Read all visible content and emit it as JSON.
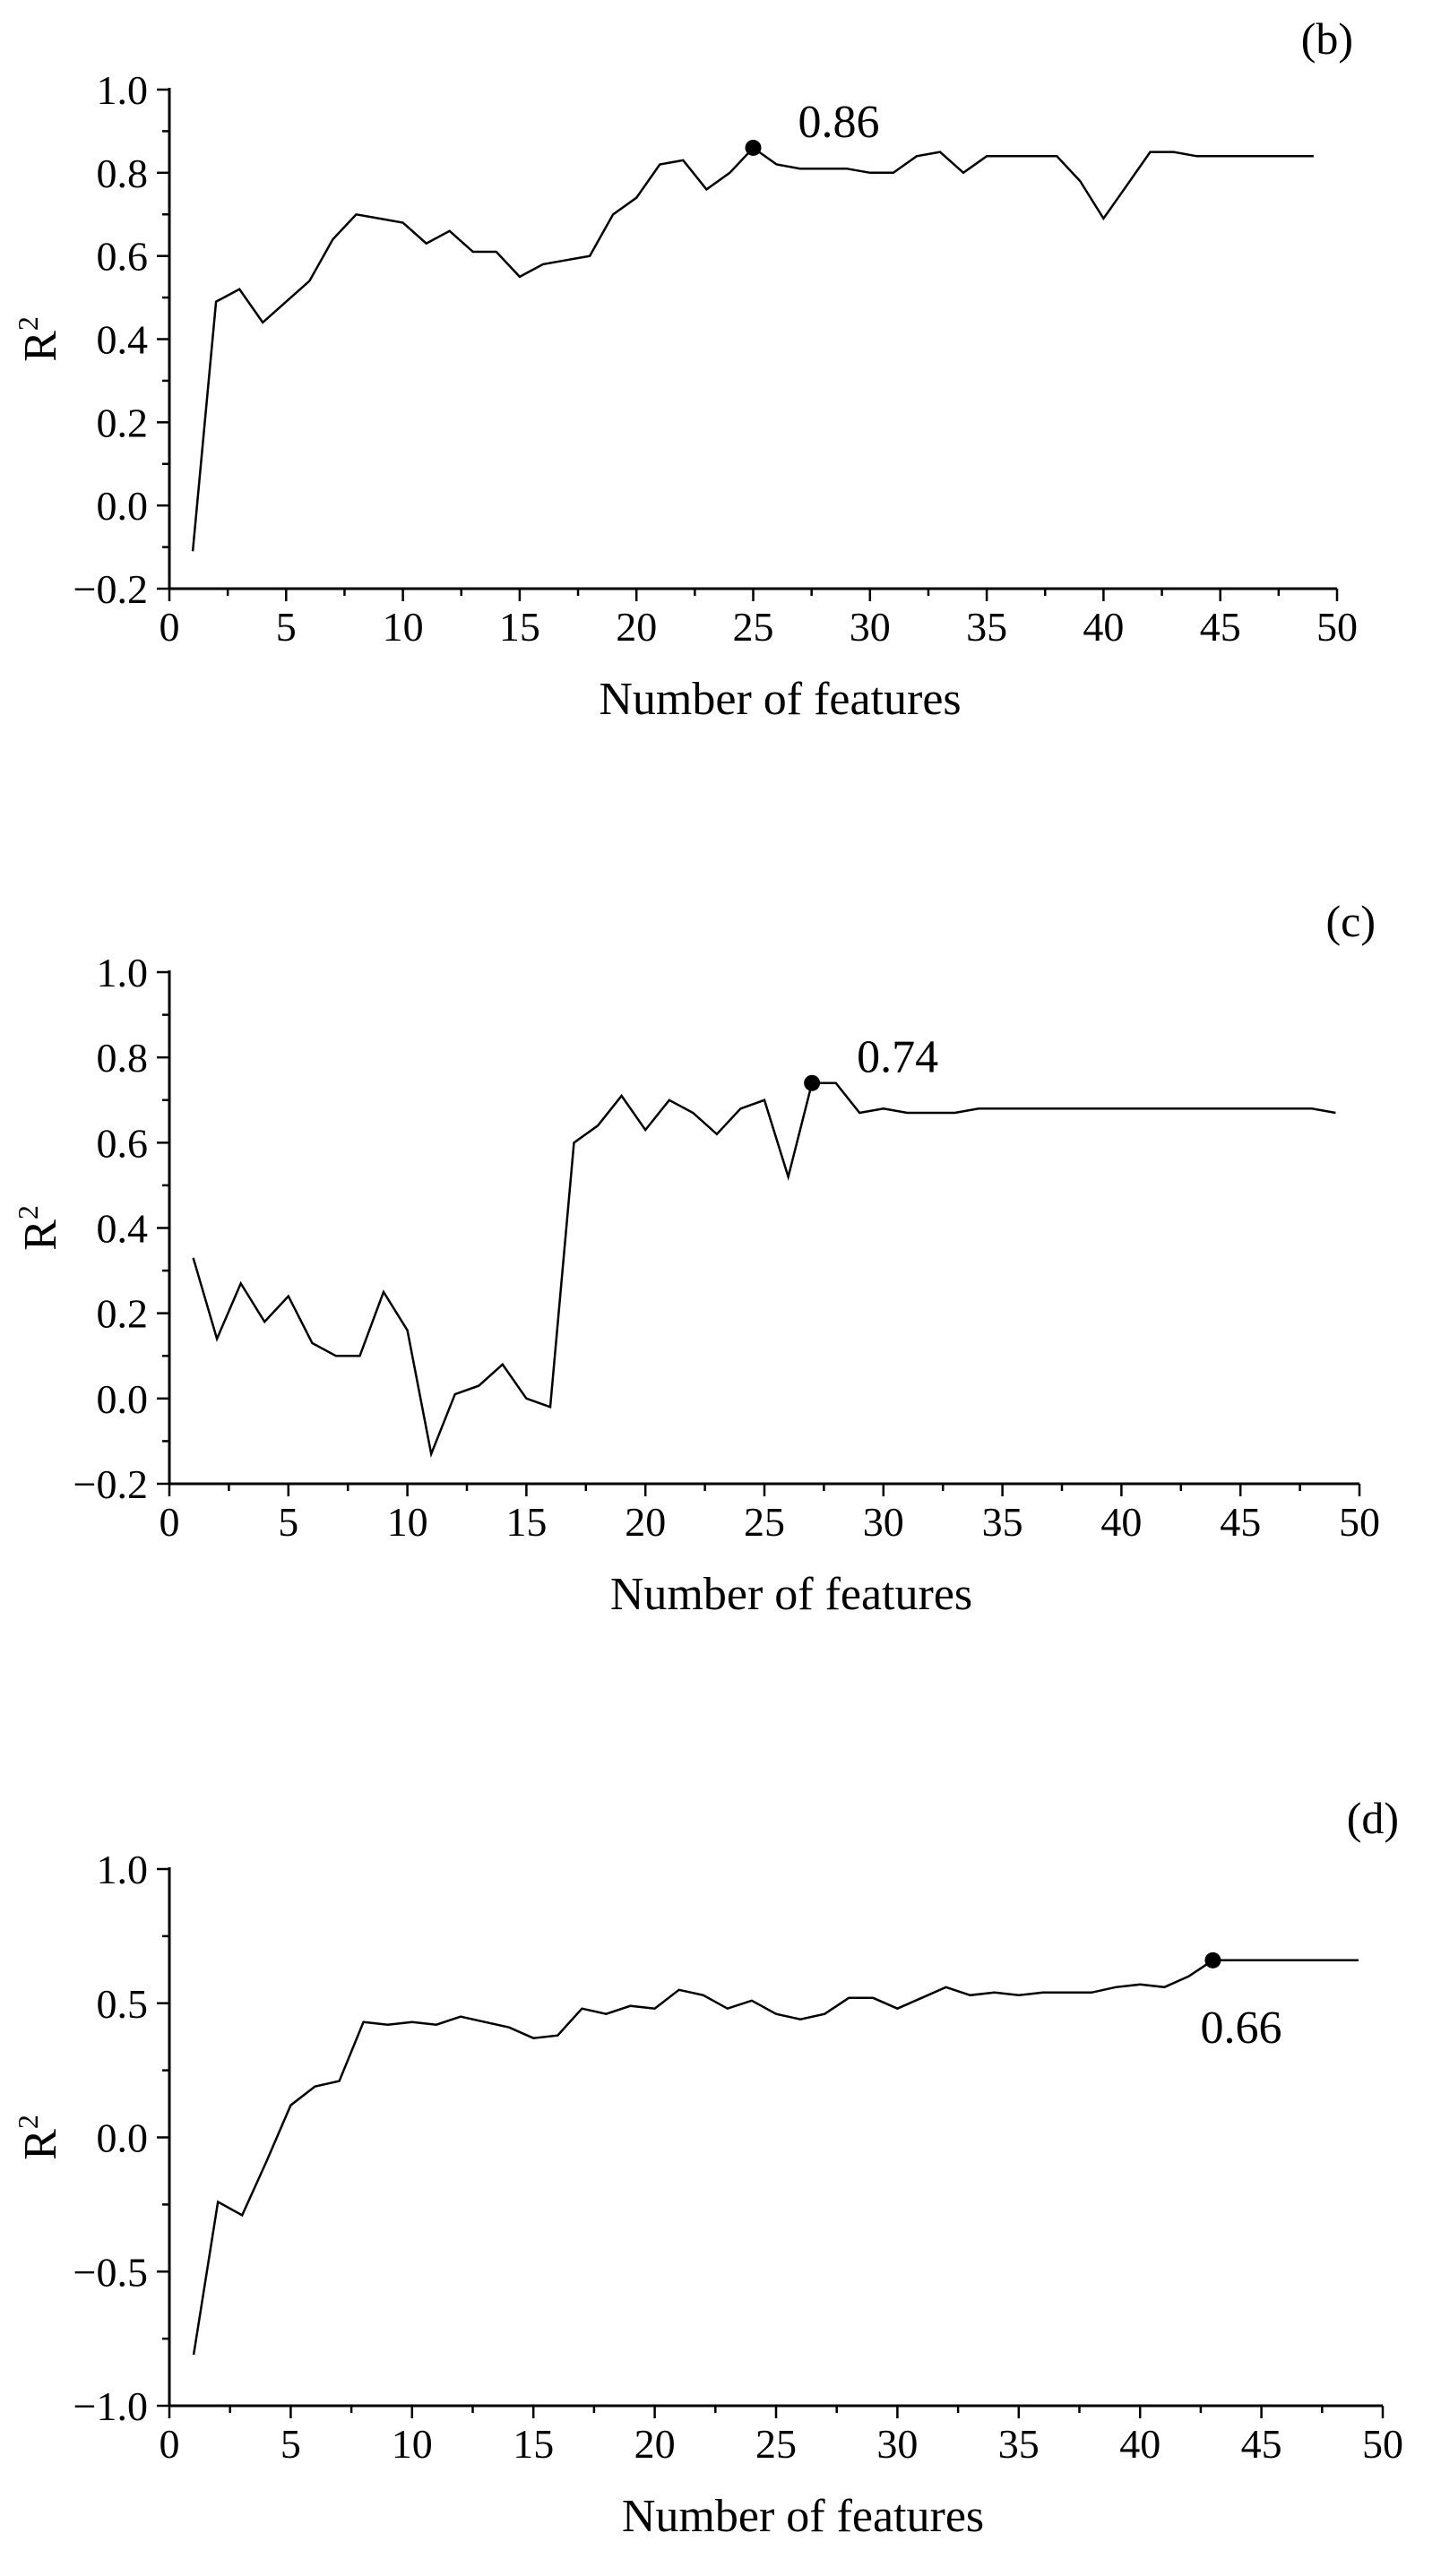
{
  "chart_data": [
    {
      "type": "line",
      "panel_label": "(b)",
      "xlabel": "Number of features",
      "ylabel": "R",
      "ylabel_superscript": "2",
      "xlim": [
        0,
        50
      ],
      "ylim": [
        -0.2,
        1.0
      ],
      "xticks": [
        0,
        5,
        10,
        15,
        20,
        25,
        30,
        35,
        40,
        45,
        50
      ],
      "yticks": [
        -0.2,
        0.0,
        0.2,
        0.4,
        0.6,
        0.8,
        1.0
      ],
      "ytick_labels": [
        "−0.2",
        "0.0",
        "0.2",
        "0.4",
        "0.6",
        "0.8",
        "1.0"
      ],
      "xtick_labels": [
        "0",
        "5",
        "10",
        "15",
        "20",
        "25",
        "30",
        "35",
        "40",
        "45",
        "50"
      ],
      "grid": false,
      "series": [
        {
          "x": [
            1,
            2,
            3,
            4,
            5,
            6,
            7,
            8,
            9,
            10,
            11,
            12,
            13,
            14,
            15,
            16,
            17,
            18,
            19,
            20,
            21,
            22,
            23,
            24,
            25,
            26,
            27,
            28,
            29,
            30,
            31,
            32,
            33,
            34,
            35,
            36,
            37,
            38,
            39,
            40,
            41,
            42,
            43,
            44,
            45,
            46,
            47,
            48,
            49
          ],
          "y": [
            -0.11,
            0.49,
            0.52,
            0.44,
            0.49,
            0.54,
            0.64,
            0.7,
            0.69,
            0.68,
            0.63,
            0.66,
            0.61,
            0.61,
            0.55,
            0.58,
            0.59,
            0.6,
            0.7,
            0.74,
            0.82,
            0.83,
            0.76,
            0.8,
            0.86,
            0.82,
            0.81,
            0.81,
            0.81,
            0.8,
            0.8,
            0.84,
            0.85,
            0.8,
            0.84,
            0.84,
            0.84,
            0.84,
            0.78,
            0.69,
            0.77,
            0.85,
            0.85,
            0.84,
            0.84,
            0.84,
            0.84,
            0.84,
            0.84
          ]
        }
      ],
      "highlight": {
        "x": 25,
        "y": 0.86,
        "label": "0.86",
        "label_position": "upper-right"
      }
    },
    {
      "type": "line",
      "panel_label": "(c)",
      "xlabel": "Number of features",
      "ylabel": "R",
      "ylabel_superscript": "2",
      "xlim": [
        0,
        50
      ],
      "ylim": [
        -0.2,
        1.0
      ],
      "xticks": [
        0,
        5,
        10,
        15,
        20,
        25,
        30,
        35,
        40,
        45,
        50
      ],
      "yticks": [
        -0.2,
        0.0,
        0.2,
        0.4,
        0.6,
        0.8,
        1.0
      ],
      "ytick_labels": [
        "−0.2",
        "0.0",
        "0.2",
        "0.4",
        "0.6",
        "0.8",
        "1.0"
      ],
      "xtick_labels": [
        "0",
        "5",
        "10",
        "15",
        "20",
        "25",
        "30",
        "35",
        "40",
        "45",
        "50"
      ],
      "grid": false,
      "series": [
        {
          "x": [
            1,
            2,
            3,
            4,
            5,
            6,
            7,
            8,
            9,
            10,
            11,
            12,
            13,
            14,
            15,
            16,
            17,
            18,
            19,
            20,
            21,
            22,
            23,
            24,
            25,
            26,
            27,
            28,
            29,
            30,
            31,
            32,
            33,
            34,
            35,
            36,
            37,
            38,
            39,
            40,
            41,
            42,
            43,
            44,
            45,
            46,
            47,
            48,
            49
          ],
          "y": [
            0.33,
            0.14,
            0.27,
            0.18,
            0.24,
            0.13,
            0.1,
            0.1,
            0.25,
            0.16,
            -0.13,
            0.01,
            0.03,
            0.08,
            0.0,
            -0.02,
            0.6,
            0.64,
            0.71,
            0.63,
            0.7,
            0.67,
            0.62,
            0.68,
            0.7,
            0.52,
            0.74,
            0.74,
            0.67,
            0.68,
            0.67,
            0.67,
            0.67,
            0.68,
            0.68,
            0.68,
            0.68,
            0.68,
            0.68,
            0.68,
            0.68,
            0.68,
            0.68,
            0.68,
            0.68,
            0.68,
            0.68,
            0.68,
            0.67
          ]
        }
      ],
      "highlight": {
        "x": 27,
        "y": 0.74,
        "label": "0.74",
        "label_position": "upper-right"
      }
    },
    {
      "type": "line",
      "panel_label": "(d)",
      "xlabel": "Number of features",
      "ylabel": "R",
      "ylabel_superscript": "2",
      "xlim": [
        0,
        50
      ],
      "ylim": [
        -1.0,
        1.0
      ],
      "xticks": [
        0,
        5,
        10,
        15,
        20,
        25,
        30,
        35,
        40,
        45,
        50
      ],
      "yticks": [
        -1.0,
        -0.5,
        0.0,
        0.5,
        1.0
      ],
      "ytick_labels": [
        "−1.0",
        "−0.5",
        "0.0",
        "0.5",
        "1.0"
      ],
      "xtick_labels": [
        "0",
        "5",
        "10",
        "15",
        "20",
        "25",
        "30",
        "35",
        "40",
        "45",
        "50"
      ],
      "grid": false,
      "series": [
        {
          "x": [
            1,
            2,
            3,
            4,
            5,
            6,
            7,
            8,
            9,
            10,
            11,
            12,
            13,
            14,
            15,
            16,
            17,
            18,
            19,
            20,
            21,
            22,
            23,
            24,
            25,
            26,
            27,
            28,
            29,
            30,
            31,
            32,
            33,
            34,
            35,
            36,
            37,
            38,
            39,
            40,
            41,
            42,
            43,
            44,
            45,
            46,
            47,
            48,
            49
          ],
          "y": [
            -0.81,
            -0.24,
            -0.29,
            -0.09,
            0.12,
            0.19,
            0.21,
            0.43,
            0.42,
            0.43,
            0.42,
            0.45,
            0.43,
            0.41,
            0.37,
            0.38,
            0.48,
            0.46,
            0.49,
            0.48,
            0.55,
            0.53,
            0.48,
            0.51,
            0.46,
            0.44,
            0.46,
            0.52,
            0.52,
            0.48,
            0.52,
            0.56,
            0.53,
            0.54,
            0.53,
            0.54,
            0.54,
            0.54,
            0.56,
            0.57,
            0.56,
            0.6,
            0.66,
            0.66,
            0.66,
            0.66,
            0.66,
            0.66,
            0.66
          ]
        }
      ],
      "highlight": {
        "x": 43,
        "y": 0.66,
        "label": "0.66",
        "label_position": "below"
      }
    }
  ]
}
